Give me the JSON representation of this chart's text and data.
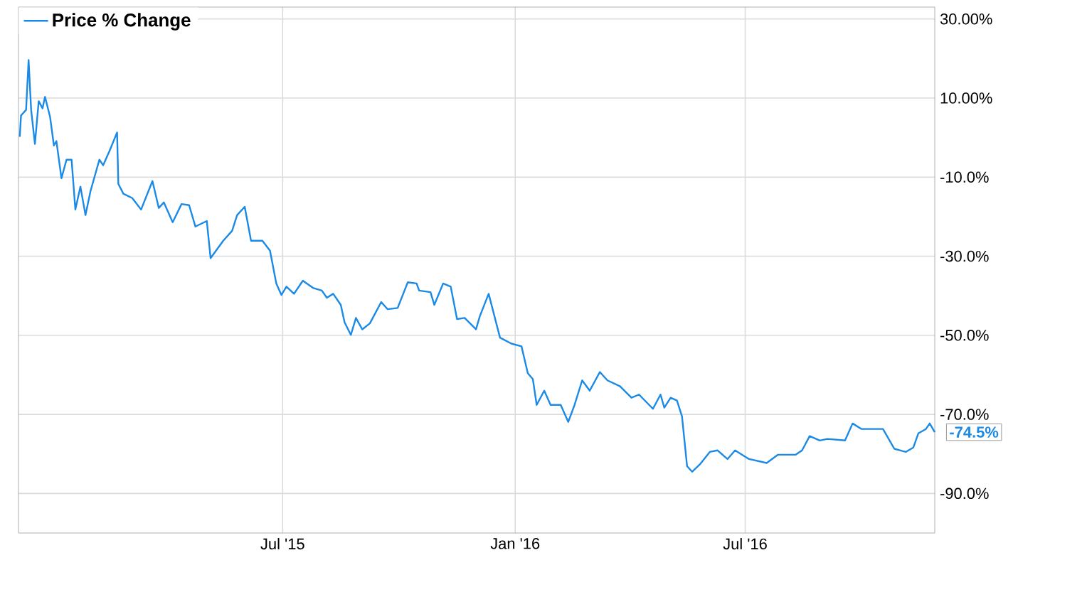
{
  "chart_data": {
    "type": "line",
    "x": [
      "2014-12-05",
      "2014-12-06",
      "2014-12-10",
      "2014-12-12",
      "2014-12-14",
      "2014-12-17",
      "2014-12-20",
      "2014-12-23",
      "2014-12-25",
      "2014-12-29",
      "2015-01-01",
      "2015-01-03",
      "2015-01-07",
      "2015-01-11",
      "2015-01-15",
      "2015-01-18",
      "2015-01-22",
      "2015-01-26",
      "2015-01-30",
      "2015-02-06",
      "2015-02-09",
      "2015-02-14",
      "2015-02-20",
      "2015-02-21",
      "2015-02-25",
      "2015-03-04",
      "2015-03-11",
      "2015-03-20",
      "2015-03-25",
      "2015-03-29",
      "2015-04-05",
      "2015-04-12",
      "2015-04-18",
      "2015-04-23",
      "2015-05-02",
      "2015-05-05",
      "2015-05-15",
      "2015-05-22",
      "2015-05-26",
      "2015-06-01",
      "2015-06-06",
      "2015-06-15",
      "2015-06-21",
      "2015-06-26",
      "2015-06-30",
      "2015-07-04",
      "2015-07-10",
      "2015-07-17",
      "2015-07-25",
      "2015-08-01",
      "2015-08-05",
      "2015-08-10",
      "2015-08-16",
      "2015-08-19",
      "2015-08-24",
      "2015-08-28",
      "2015-09-02",
      "2015-09-08",
      "2015-09-17",
      "2015-09-22",
      "2015-09-30",
      "2015-10-08",
      "2015-10-15",
      "2015-10-17",
      "2015-10-26",
      "2015-10-29",
      "2015-11-05",
      "2015-11-11",
      "2015-11-16",
      "2015-11-22",
      "2015-12-01",
      "2015-12-04",
      "2015-12-11",
      "2015-12-20",
      "2015-12-29",
      "2016-01-06",
      "2016-01-11",
      "2016-01-15",
      "2016-01-18",
      "2016-01-24",
      "2016-01-29",
      "2016-02-06",
      "2016-02-12",
      "2016-02-17",
      "2016-02-23",
      "2016-02-29",
      "2016-03-08",
      "2016-03-14",
      "2016-03-24",
      "2016-04-02",
      "2016-04-08",
      "2016-04-19",
      "2016-04-25",
      "2016-04-28",
      "2016-05-03",
      "2016-05-08",
      "2016-05-12",
      "2016-05-16",
      "2016-05-20",
      "2016-05-26",
      "2016-06-03",
      "2016-06-09",
      "2016-06-17",
      "2016-06-23",
      "2016-07-04",
      "2016-07-18",
      "2016-07-27",
      "2016-08-10",
      "2016-08-15",
      "2016-08-21",
      "2016-08-29",
      "2016-09-04",
      "2016-09-18",
      "2016-09-24",
      "2016-10-01",
      "2016-10-18",
      "2016-10-27",
      "2016-11-05",
      "2016-11-11",
      "2016-11-15",
      "2016-11-21",
      "2016-11-24",
      "2016-11-28"
    ],
    "series": [
      {
        "name": "Price % Change",
        "color": "#1a8ae6",
        "values": [
          0.2,
          5.6,
          7,
          19.6,
          7,
          -1.6,
          9.2,
          7.4,
          10.3,
          5.2,
          -2,
          -0.9,
          -10.3,
          -5.6,
          -5.6,
          -18.2,
          -12.4,
          -19.6,
          -13.5,
          -5.6,
          -7,
          -3.4,
          1.3,
          -11.7,
          -14.2,
          -15.3,
          -18.2,
          -11,
          -17.8,
          -16.4,
          -21.4,
          -16.8,
          -17.1,
          -22.5,
          -21.1,
          -30.5,
          -26.1,
          -23.6,
          -19.6,
          -17.5,
          -26.1,
          -26.1,
          -28.6,
          -36.9,
          -39.8,
          -37.7,
          -39.5,
          -36.2,
          -38,
          -38.7,
          -40.5,
          -39.5,
          -42.3,
          -46.7,
          -49.9,
          -45.6,
          -48.5,
          -47,
          -41.6,
          -43.4,
          -43.1,
          -36.6,
          -36.9,
          -38.7,
          -39.1,
          -42.3,
          -36.9,
          -37.7,
          -45.9,
          -45.6,
          -48.5,
          -45.2,
          -39.5,
          -50.6,
          -52.1,
          -52.8,
          -59.6,
          -61.1,
          -67.6,
          -64,
          -67.6,
          -67.6,
          -71.9,
          -67.6,
          -61.4,
          -64,
          -59.3,
          -61.4,
          -62.9,
          -65.8,
          -65,
          -68.6,
          -65,
          -68.3,
          -65.8,
          -66.5,
          -70.5,
          -83.1,
          -84.5,
          -82.7,
          -79.5,
          -79.1,
          -81.3,
          -79.1,
          -81.3,
          -82.3,
          -80.2,
          -80.2,
          -79.1,
          -75.5,
          -76.6,
          -76.2,
          -76.6,
          -72.3,
          -73.7,
          -73.7,
          -78.7,
          -79.5,
          -78.4,
          -74.8,
          -73.7,
          -72.3,
          -74.5
        ]
      }
    ],
    "xlim": [
      "2014-12-04",
      "2016-11-28"
    ],
    "xticks": [
      {
        "value": "2015-07-01",
        "label": "Jul '15"
      },
      {
        "value": "2016-01-01",
        "label": "Jan '16"
      },
      {
        "value": "2016-07-01",
        "label": "Jul '16"
      }
    ],
    "ylim": [
      -100,
      33
    ],
    "yticks": [
      {
        "value": 30,
        "label": "30.00%"
      },
      {
        "value": 10,
        "label": "10.00%"
      },
      {
        "value": -10,
        "label": "-10.0%"
      },
      {
        "value": -30,
        "label": "-30.0%"
      },
      {
        "value": -50,
        "label": "-50.0%"
      },
      {
        "value": -70,
        "label": "-70.0%"
      },
      {
        "value": -90,
        "label": "-90.0%"
      }
    ],
    "annotations": [
      {
        "text": "-74.5%",
        "x": "2016-11-28",
        "y": -74.5
      }
    ],
    "grid": true,
    "legend": "top left",
    "marker": "none",
    "line_style": "solid"
  }
}
